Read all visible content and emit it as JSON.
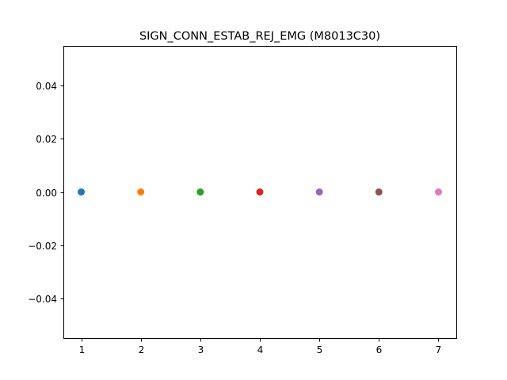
{
  "chart_data": {
    "type": "scatter",
    "title": "SIGN_CONN_ESTAB_REJ_EMG (M8013C30)",
    "xlabel": "",
    "ylabel": "",
    "xlim": [
      0.7,
      7.3
    ],
    "ylim": [
      -0.055,
      0.055
    ],
    "x_ticks": [
      1,
      2,
      3,
      4,
      5,
      6,
      7
    ],
    "x_tick_labels": [
      "1",
      "2",
      "3",
      "4",
      "5",
      "6",
      "7"
    ],
    "y_ticks": [
      -0.04,
      -0.02,
      0.0,
      0.02,
      0.04
    ],
    "y_tick_labels": [
      "−0.04",
      "−0.02",
      "0.00",
      "0.02",
      "0.04"
    ],
    "grid": false,
    "points": [
      {
        "x": 1,
        "y": 0,
        "color": "#1f77b4"
      },
      {
        "x": 2,
        "y": 0,
        "color": "#ff7f0e"
      },
      {
        "x": 3,
        "y": 0,
        "color": "#2ca02c"
      },
      {
        "x": 4,
        "y": 0,
        "color": "#d62728"
      },
      {
        "x": 5,
        "y": 0,
        "color": "#9467bd"
      },
      {
        "x": 6,
        "y": 0,
        "color": "#8c564b"
      },
      {
        "x": 7,
        "y": 0,
        "color": "#e377c2"
      }
    ]
  }
}
